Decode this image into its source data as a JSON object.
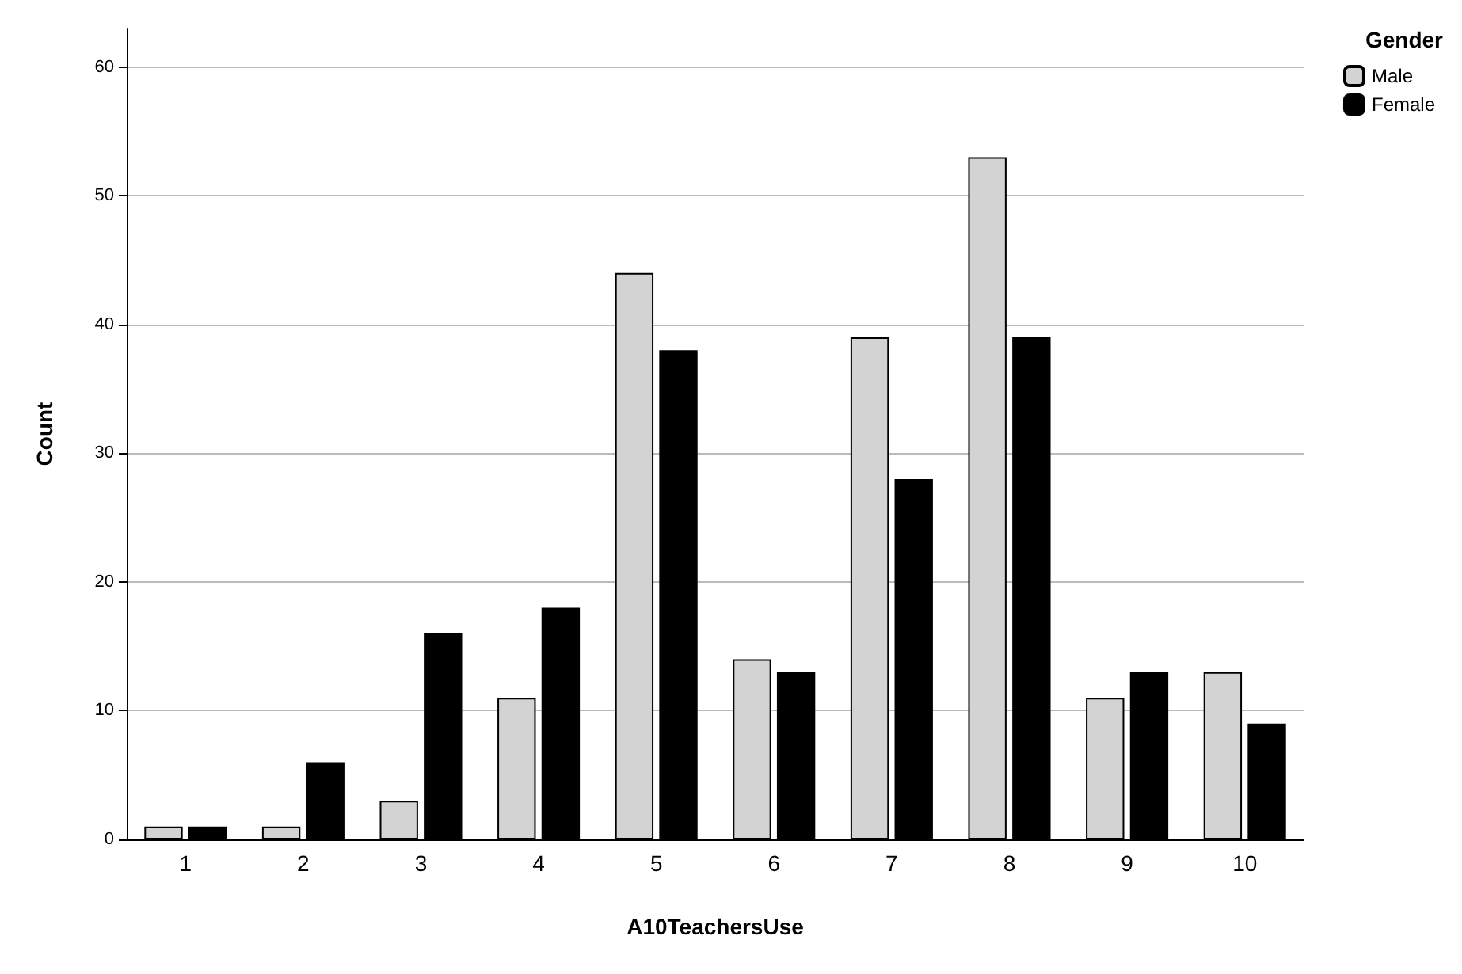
{
  "chart_data": {
    "type": "bar",
    "xlabel": "A10TeachersUse",
    "ylabel": "Count",
    "legend_title": "Gender",
    "categories": [
      "1",
      "2",
      "3",
      "4",
      "5",
      "6",
      "7",
      "8",
      "9",
      "10"
    ],
    "series": [
      {
        "name": "Male",
        "color": "#d3d3d3",
        "values": [
          1,
          1,
          3,
          11,
          44,
          14,
          39,
          53,
          11,
          13
        ]
      },
      {
        "name": "Female",
        "color": "#000000",
        "values": [
          1,
          6,
          16,
          18,
          38,
          13,
          28,
          39,
          13,
          9
        ]
      }
    ],
    "ylim": [
      0,
      63
    ],
    "yticks": [
      0,
      10,
      20,
      30,
      40,
      50,
      60
    ],
    "grid": "y",
    "legend": "top right"
  }
}
